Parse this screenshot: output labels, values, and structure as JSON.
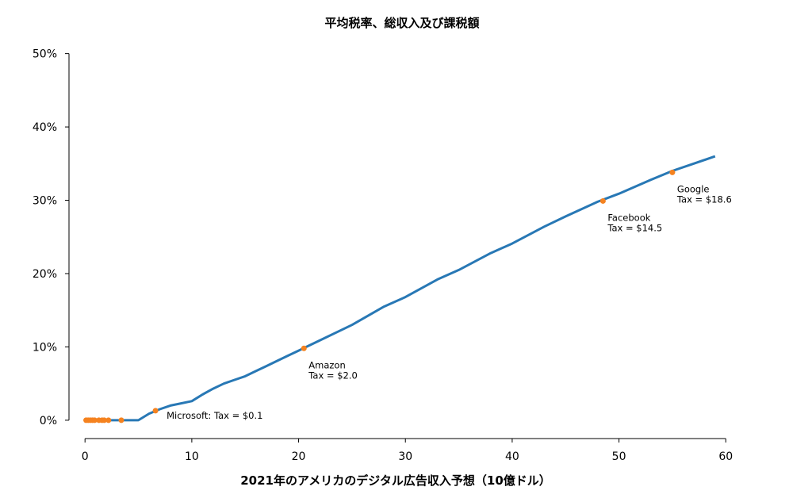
{
  "chart_data": {
    "type": "line",
    "title": "平均税率、総収入及び課税額",
    "xlabel": "2021年のアメリカのデジタル広告収入予想（10億ドル）",
    "ylabel": "",
    "xlim": [
      -1.5,
      60.5
    ],
    "ylim": [
      -2.5,
      50.5
    ],
    "xticks": [
      0,
      10,
      20,
      30,
      40,
      50,
      60
    ],
    "xtick_labels": [
      "0",
      "10",
      "20",
      "30",
      "40",
      "50",
      "60"
    ],
    "yticks": [
      0,
      10,
      20,
      30,
      40,
      50
    ],
    "ytick_labels": [
      "0%",
      "10%",
      "20%",
      "30%",
      "40%",
      "50%"
    ],
    "grid": false,
    "legend": "none",
    "colors": {
      "line": "#2878b5",
      "points": "#f5821f"
    },
    "series": [
      {
        "x": [
          0,
          1,
          2,
          3,
          4,
          5,
          6,
          7,
          8,
          9,
          10,
          11,
          12,
          13,
          14,
          15,
          16,
          17,
          18,
          19,
          20,
          22,
          25,
          28,
          30,
          33,
          35,
          38,
          40,
          43,
          45,
          48,
          50,
          53,
          55,
          57,
          59
        ],
        "y": [
          0,
          0,
          0,
          0,
          0,
          0,
          0.9,
          1.5,
          2.0,
          2.3,
          2.6,
          3.5,
          4.3,
          5.0,
          5.5,
          6.0,
          6.7,
          7.4,
          8.1,
          8.8,
          9.5,
          10.9,
          13.0,
          15.5,
          16.8,
          19.2,
          20.5,
          22.8,
          24.1,
          26.4,
          27.8,
          29.8,
          30.9,
          32.8,
          34.0,
          35.0,
          36.0
        ]
      }
    ],
    "points": {
      "x": [
        0.1,
        0.3,
        0.5,
        0.7,
        0.9,
        1.3,
        1.6,
        1.8,
        2.2,
        3.4,
        6.6,
        20.5,
        48.5,
        55.0
      ],
      "y": [
        0,
        0,
        0,
        0,
        0,
        0,
        0,
        0,
        0,
        0,
        1.3,
        9.8,
        29.9,
        33.8
      ]
    },
    "annotations": [
      {
        "line1": "Microsoft: Tax = $0.1",
        "line2": "",
        "x": 6.6,
        "y": 1.3
      },
      {
        "line1": "Amazon",
        "line2": "Tax = $2.0",
        "x": 20.5,
        "y": 9.8
      },
      {
        "line1": "Facebook",
        "line2": "Tax = $14.5",
        "x": 48.5,
        "y": 29.9
      },
      {
        "line1": "Google",
        "line2": "Tax = $18.6",
        "x": 55.0,
        "y": 33.8
      }
    ]
  }
}
